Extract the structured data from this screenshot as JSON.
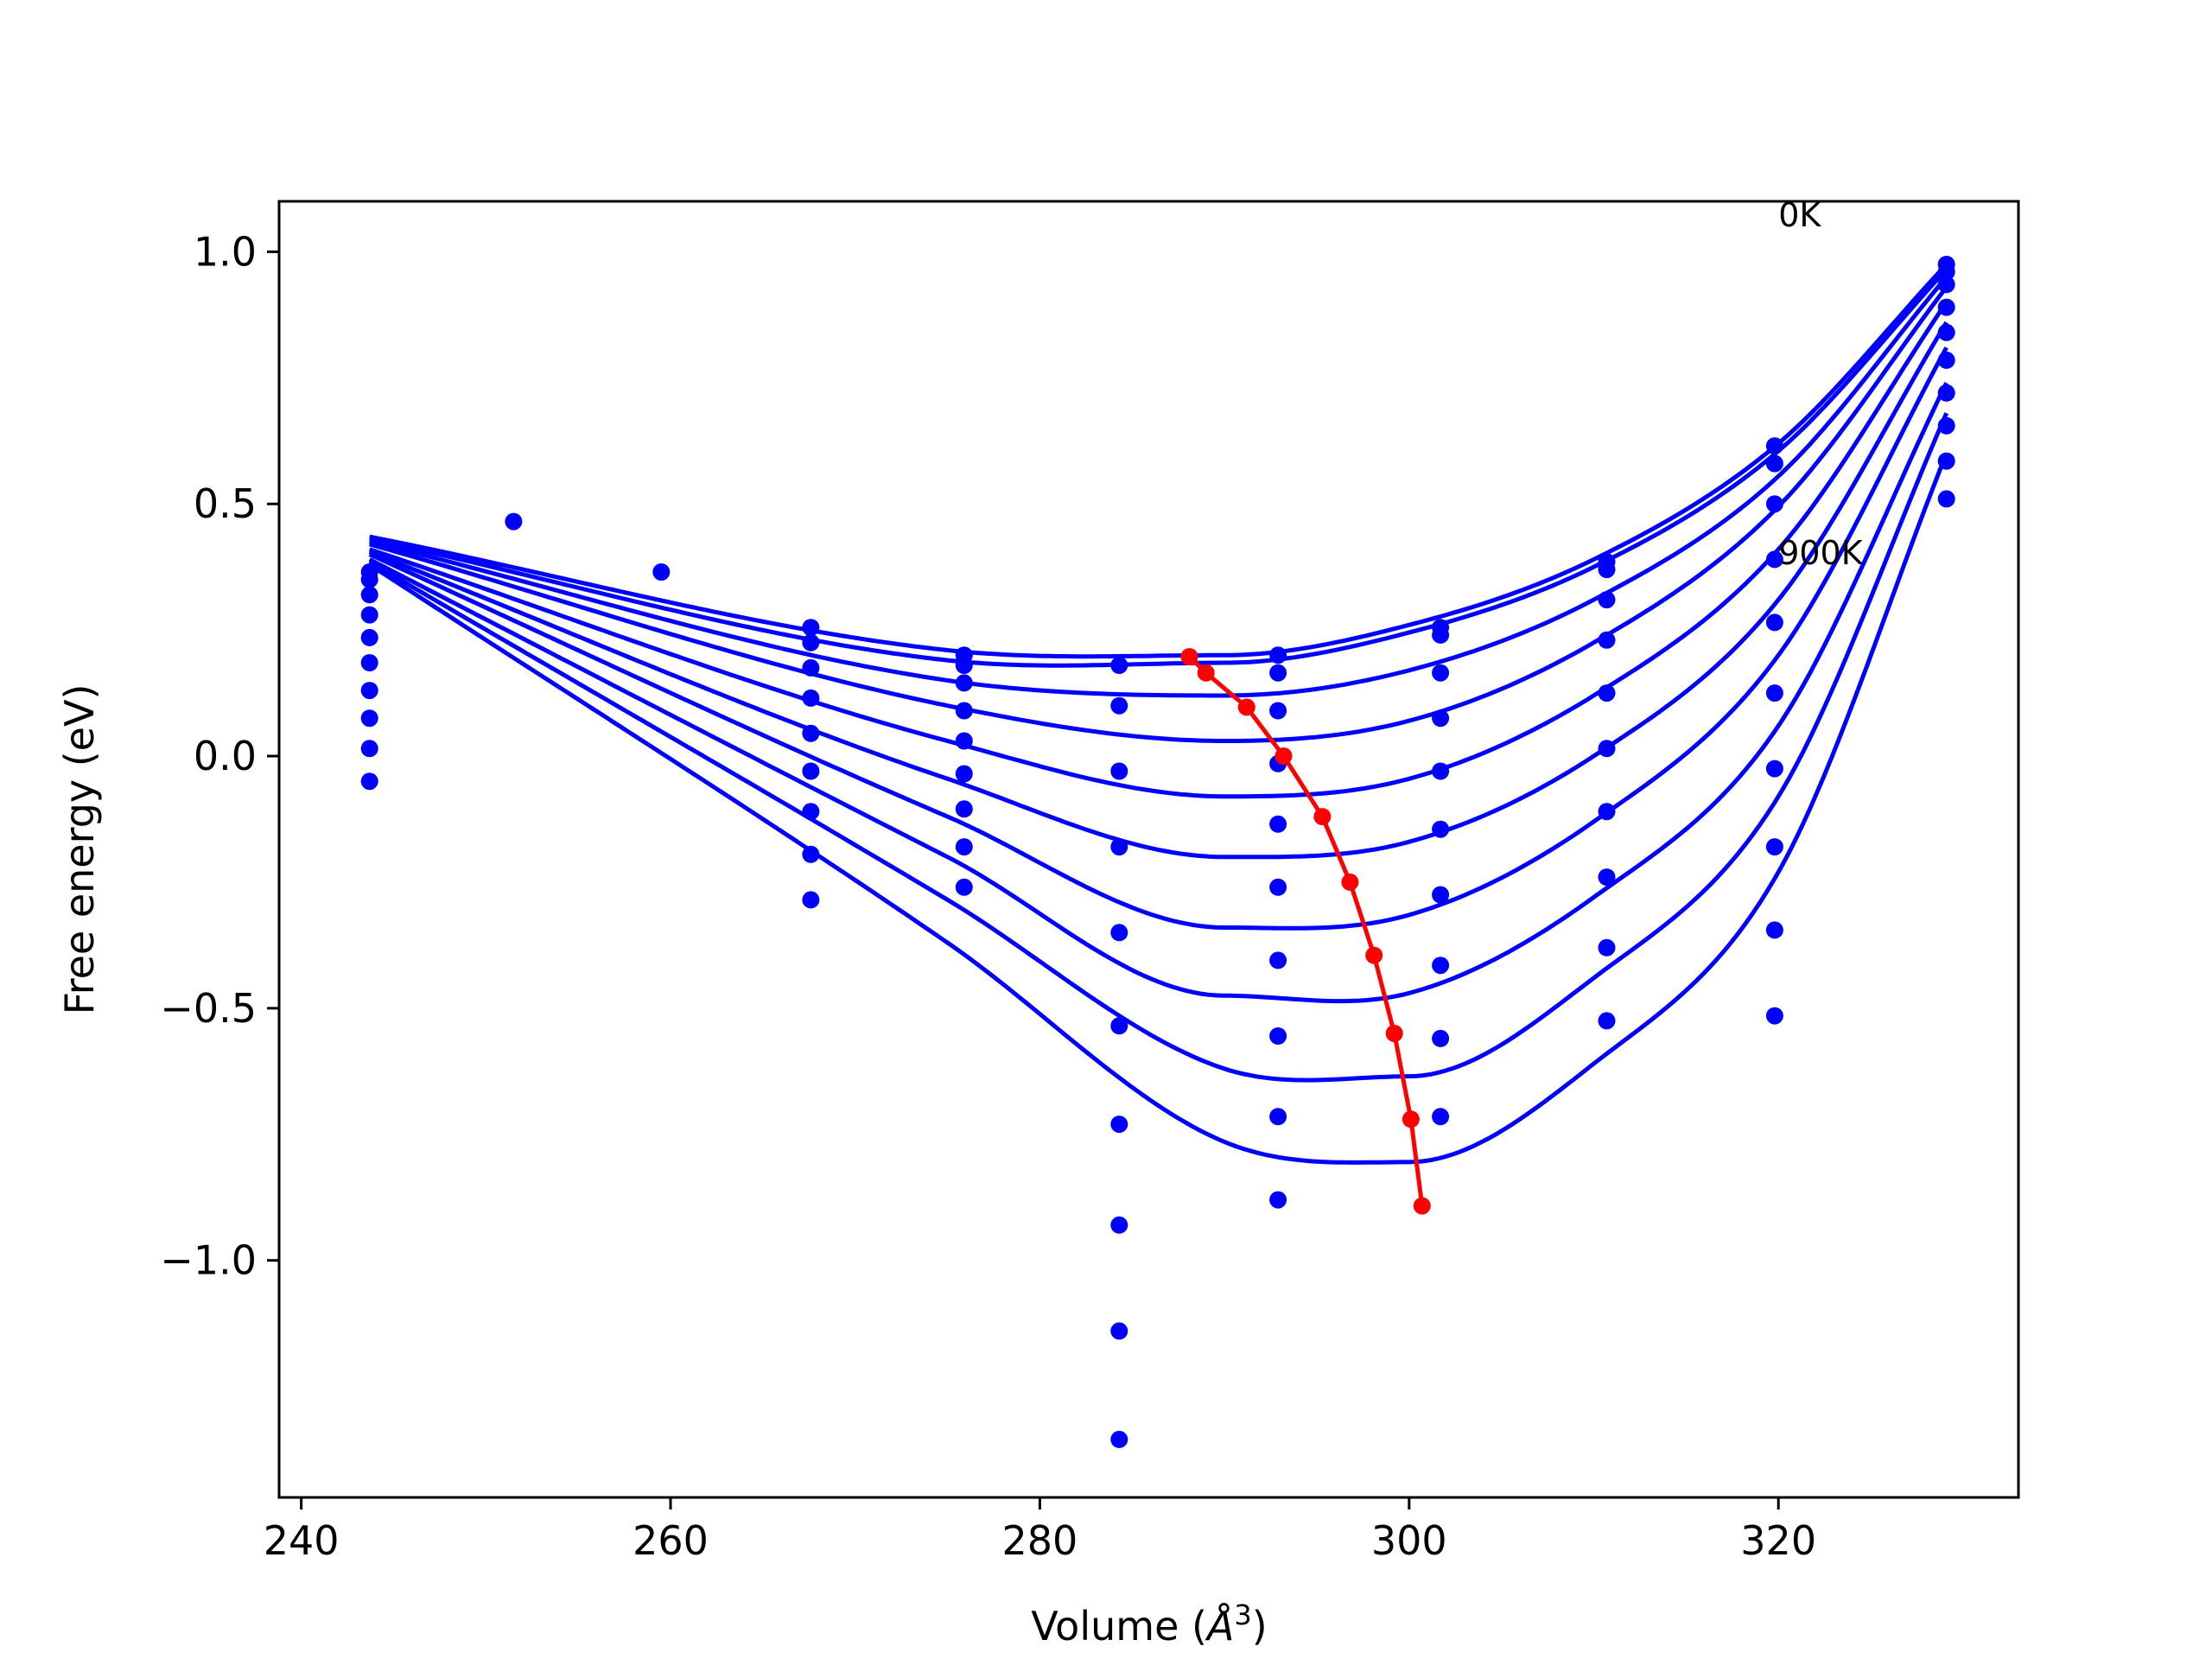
{
  "chart_data": {
    "type": "scatter",
    "xlabel": "Volume (Å³)",
    "xlabel_parts": {
      "text": "Volume (",
      "symbol": "Å",
      "exponent": "3",
      "close": ")"
    },
    "ylabel": "Free energy (eV)",
    "xlim": [
      238.8,
      333.0
    ],
    "ylim": [
      -1.47,
      1.1
    ],
    "xticks": [
      {
        "value": 240,
        "label": "240"
      },
      {
        "value": 260,
        "label": "260"
      },
      {
        "value": 280,
        "label": "280"
      },
      {
        "value": 300,
        "label": "300"
      },
      {
        "value": 320,
        "label": "320"
      }
    ],
    "yticks": [
      {
        "value": 1.0,
        "label": "1.0"
      },
      {
        "value": 0.5,
        "label": "0.5"
      },
      {
        "value": 0.0,
        "label": "0.0"
      },
      {
        "value": -0.5,
        "label": "−0.5"
      },
      {
        "value": -1.0,
        "label": "−1.0"
      }
    ],
    "grid": false,
    "legend": "none",
    "colors": {
      "fit": "#0000ff",
      "points": "#0000ff",
      "minima": "#ff0000",
      "axes": "#000000"
    },
    "annotations": [
      {
        "text": "0K",
        "x": 320.0,
        "y": 1.05
      },
      {
        "text": "900K",
        "x": 320.0,
        "y": 0.38
      }
    ],
    "volume_grid": [
      243.7,
      251.5,
      259.5,
      267.6,
      275.9,
      284.3,
      292.9,
      301.7,
      310.7,
      319.8,
      329.1
    ],
    "points": [
      {
        "x": 243.7,
        "y": [
          0.365,
          0.35,
          0.32,
          0.28,
          0.235,
          0.185,
          0.13,
          0.075,
          0.015,
          -0.05
        ]
      },
      {
        "x": 251.5,
        "y": [
          0.465
        ]
      },
      {
        "x": 259.5,
        "y": [
          0.365
        ]
      },
      {
        "x": 267.6,
        "y": [
          0.255,
          0.225,
          0.175,
          0.115,
          0.045,
          -0.03,
          -0.11,
          -0.195,
          -0.285
        ]
      },
      {
        "x": 275.9,
        "y": [
          0.2,
          0.18,
          0.145,
          0.09,
          0.03,
          -0.035,
          -0.105,
          -0.18,
          -0.26
        ]
      },
      {
        "x": 284.3,
        "y": [
          0.18,
          0.1,
          -0.03,
          -0.18,
          -0.35,
          -0.535,
          -0.73,
          -0.93,
          -1.14,
          -1.355
        ]
      },
      {
        "x": 292.9,
        "y": [
          0.2,
          0.165,
          0.09,
          -0.015,
          -0.135,
          -0.26,
          -0.405,
          -0.555,
          -0.715,
          -0.88
        ]
      },
      {
        "x": 301.7,
        "y": [
          0.255,
          0.24,
          0.165,
          0.075,
          -0.03,
          -0.145,
          -0.275,
          -0.415,
          -0.56,
          -0.715
        ]
      },
      {
        "x": 310.7,
        "y": [
          0.385,
          0.37,
          0.31,
          0.23,
          0.125,
          0.015,
          -0.11,
          -0.24,
          -0.38,
          -0.525
        ]
      },
      {
        "x": 319.8,
        "y": [
          0.615,
          0.58,
          0.5,
          0.39,
          0.265,
          0.125,
          -0.025,
          -0.18,
          -0.345,
          -0.515
        ]
      },
      {
        "x": 329.1,
        "y": [
          0.975,
          0.96,
          0.935,
          0.89,
          0.84,
          0.785,
          0.72,
          0.655,
          0.585,
          0.51
        ]
      }
    ],
    "series": [
      {
        "values": [
          0.435,
          0.21,
          0.2,
          0.26,
          0.39,
          0.62,
          0.975
        ]
      },
      {
        "values": [
          0.43,
          0.19,
          0.185,
          0.245,
          0.375,
          0.605,
          0.965
        ]
      },
      {
        "values": [
          0.425,
          0.15,
          0.12,
          0.17,
          0.31,
          0.555,
          0.95
        ]
      },
      {
        "values": [
          0.42,
          0.1,
          0.03,
          0.07,
          0.225,
          0.495,
          0.93
        ]
      },
      {
        "values": [
          0.41,
          0.03,
          -0.08,
          -0.045,
          0.12,
          0.41,
          0.9
        ]
      },
      {
        "values": [
          0.405,
          -0.045,
          -0.2,
          -0.17,
          0.0,
          0.31,
          0.86
        ]
      },
      {
        "values": [
          0.4,
          -0.12,
          -0.34,
          -0.315,
          -0.13,
          0.2,
          0.81
        ]
      },
      {
        "values": [
          0.39,
          -0.2,
          -0.475,
          -0.47,
          -0.28,
          0.06,
          0.74
        ]
      },
      {
        "values": [
          0.385,
          -0.285,
          -0.62,
          -0.635,
          -0.44,
          -0.08,
          0.68
        ]
      },
      {
        "values": [
          0.38,
          -0.37,
          -0.765,
          -0.805,
          -0.61,
          -0.23,
          0.6
        ]
      }
    ],
    "fit_x": [
      243.7,
      275.0,
      290.0,
      300.0,
      310.0,
      320.0,
      329.1
    ],
    "minima": {
      "x": [
        288.1,
        289.0,
        291.2,
        293.2,
        295.3,
        296.8,
        298.1,
        299.2,
        300.1,
        300.7
      ],
      "y": [
        0.197,
        0.165,
        0.097,
        0.0,
        -0.12,
        -0.25,
        -0.395,
        -0.55,
        -0.72,
        -0.892
      ]
    }
  }
}
